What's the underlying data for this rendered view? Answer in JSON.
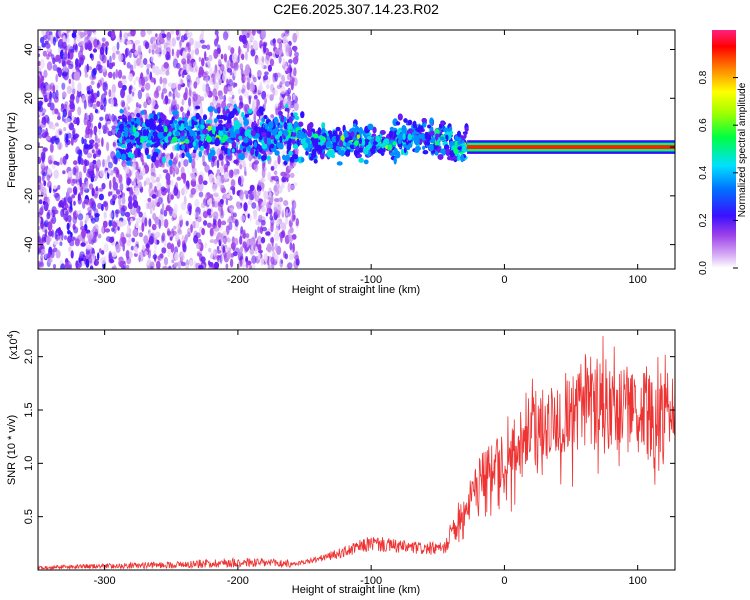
{
  "title": "C2E6.2025.307.14.23.R02",
  "chart_data": [
    {
      "type": "heatmap",
      "xlabel": "Height of straight line (km)",
      "ylabel": "Frequency (Hz)",
      "xlim": [
        -350,
        128
      ],
      "ylim": [
        -50,
        48
      ],
      "xticks": [
        -300,
        -200,
        -100,
        0,
        100
      ],
      "yticks": [
        -40,
        -20,
        0,
        20,
        40
      ],
      "colorbar": {
        "label": "Normalized spectral amplitude",
        "range": [
          0,
          1
        ],
        "ticks": [
          "0.0",
          "0.2",
          "0.4",
          "0.6",
          "0.8"
        ],
        "colors": [
          "#ffffff",
          "#c98cf2",
          "#8a2be2",
          "#3010ff",
          "#00c8ff",
          "#00ff80",
          "#80ff00",
          "#ffff00",
          "#ff8000",
          "#ff0000",
          "#ff0080"
        ]
      },
      "features": [
        {
          "x_range": [
            -350,
            -160
          ],
          "freq_range": [
            -50,
            48
          ],
          "amplitude": 0.15,
          "description": "broadband"
        },
        {
          "x_range": [
            -290,
            -30
          ],
          "freq_center": 5,
          "freq_width": 10,
          "amplitude": 0.4
        },
        {
          "x_range": [
            -30,
            128
          ],
          "freq_center": 0,
          "freq_width": 2,
          "amplitude": 0.95
        }
      ]
    },
    {
      "type": "line",
      "xlabel": "Height of straight line (km)",
      "ylabel": "SNR (10 * v/v)",
      "y_scale_label": "(x10",
      "y_scale_exp": "4",
      "y_scale_suffix": ")",
      "xlim": [
        -350,
        128
      ],
      "ylim": [
        0.0,
        2.25
      ],
      "xticks": [
        -300,
        -200,
        -100,
        0,
        100
      ],
      "yticks": [
        "0.5",
        "1.0",
        "1.5",
        "2.0"
      ],
      "series": [
        {
          "color": "#ee3333",
          "x": [
            -350,
            -300,
            -250,
            -200,
            -160,
            -140,
            -120,
            -100,
            -80,
            -60,
            -45,
            -40,
            -30,
            -20,
            -15,
            -10,
            0,
            10,
            20,
            30,
            40,
            50,
            60,
            70,
            80,
            90,
            100,
            110,
            120,
            128
          ],
          "y": [
            0.02,
            0.03,
            0.04,
            0.06,
            0.05,
            0.1,
            0.17,
            0.25,
            0.22,
            0.2,
            0.2,
            0.35,
            0.55,
            0.8,
            0.9,
            0.95,
            1.0,
            1.15,
            1.3,
            1.4,
            1.45,
            1.5,
            1.55,
            1.6,
            1.55,
            1.5,
            1.45,
            1.45,
            1.45,
            1.5
          ]
        }
      ]
    }
  ]
}
